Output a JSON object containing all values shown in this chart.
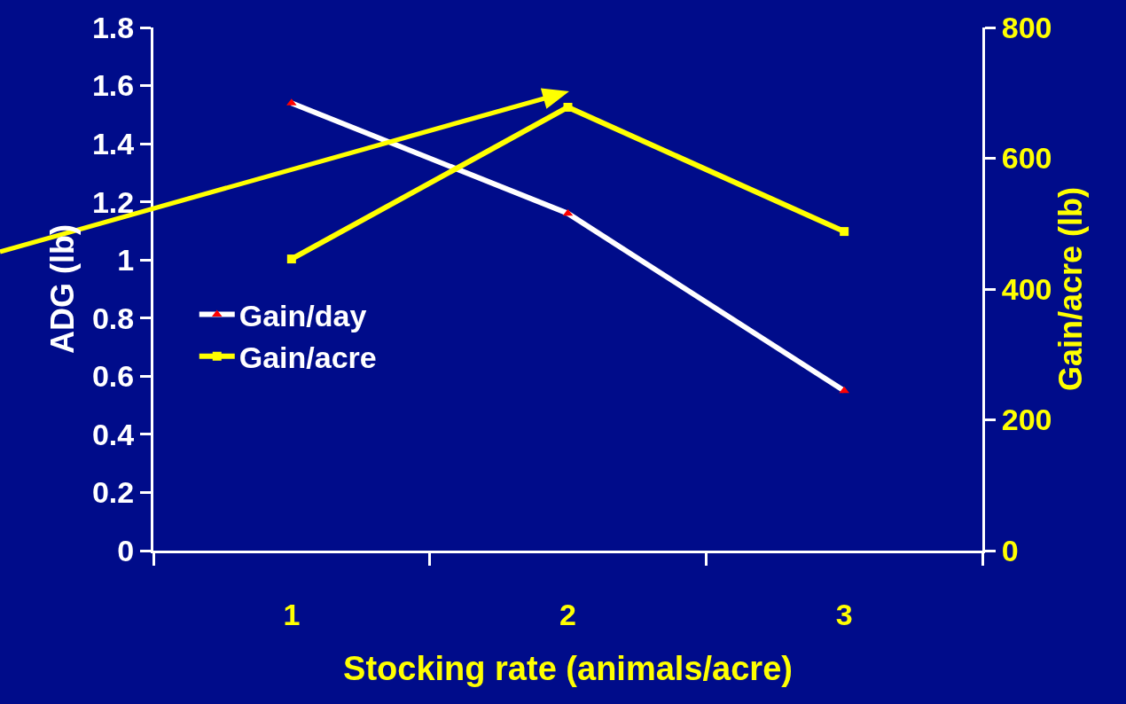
{
  "chart_data": {
    "type": "line",
    "xlabel": "Stocking rate (animals/acre)",
    "ylabel": "ADG (lb)",
    "y2label": "Gain/acre (lb)",
    "categories": [
      "1",
      "2",
      "3"
    ],
    "series": [
      {
        "name": "Gain/day",
        "color": "#ffffff",
        "colors": [
          "#ff0000",
          "#ff0000",
          "#ff0000"
        ],
        "marker": "triangle",
        "values": [
          1.54,
          1.16,
          0.55
        ]
      },
      {
        "name": "Gain/acre",
        "color": "#ffff00",
        "marker": "square",
        "axis": "y2",
        "values": [
          446,
          678,
          488
        ]
      }
    ],
    "ylim": [
      0,
      1.8
    ],
    "yticks": [
      {
        "value": 0,
        "label": "0"
      },
      0.2,
      0.4,
      0.6,
      0.8,
      {
        "value": 1.0,
        "label": "1"
      },
      1.2,
      1.4,
      1.6,
      1.8
    ],
    "y2lim": [
      0,
      800
    ],
    "y2ticks": [
      0,
      200,
      400,
      600,
      800
    ],
    "legend": "left",
    "grid": false
  }
}
